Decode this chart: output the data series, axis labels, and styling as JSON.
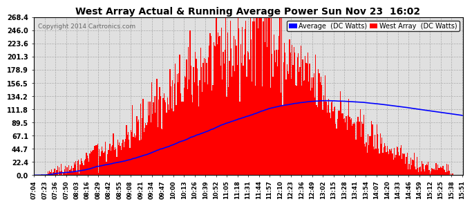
{
  "title": "West Array Actual & Running Average Power Sun Nov 23  16:02",
  "copyright": "Copyright 2014 Cartronics.com",
  "legend_avg": "Average  (DC Watts)",
  "legend_west": "West Array  (DC Watts)",
  "ymax": 268.4,
  "ymin": 0.0,
  "yticks": [
    0.0,
    22.4,
    44.7,
    67.1,
    89.5,
    111.8,
    134.2,
    156.5,
    178.9,
    201.3,
    223.6,
    246.0,
    268.4
  ],
  "bar_color": "#FF0000",
  "avg_line_color": "#0000FF",
  "background_color": "#FFFFFF",
  "grid_color": "#AAAAAA",
  "xtick_labels": [
    "07:04",
    "07:23",
    "07:36",
    "07:50",
    "08:03",
    "08:16",
    "08:29",
    "08:42",
    "08:55",
    "09:08",
    "09:21",
    "09:34",
    "09:47",
    "10:00",
    "10:13",
    "10:26",
    "10:39",
    "10:52",
    "11:05",
    "11:18",
    "11:31",
    "11:44",
    "11:57",
    "12:10",
    "12:23",
    "12:36",
    "12:49",
    "13:02",
    "13:15",
    "13:28",
    "13:41",
    "13:54",
    "14:07",
    "14:20",
    "14:33",
    "14:46",
    "14:59",
    "15:12",
    "15:25",
    "15:38",
    "15:51"
  ],
  "n_bars": 492,
  "n_ticks": 41,
  "seed": 42
}
